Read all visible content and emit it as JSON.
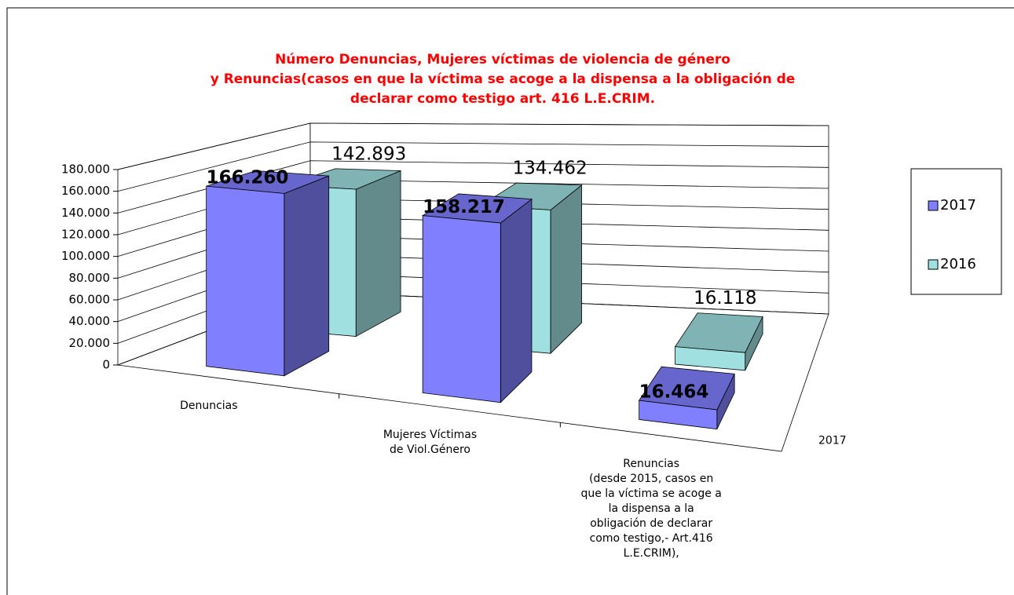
{
  "chart_data": {
    "type": "bar3d",
    "title": "Número Denuncias, Mujeres víctimas de violencia de género\ny Renuncias(casos en que la víctima se acoge a la dispensa a la obligación de\ndeclarar como testigo art. 416 L.E.CRIM.",
    "title_color": "#ff0000",
    "categories": [
      "Denuncias",
      "Mujeres Víctimas\nde Viol.Género",
      "Renuncias\n(desde 2015, casos en\nque la víctima se acoge a\nla dispensa  a la\nobligación de declarar\ncomo testigo,- Art.416\nL.E.CRIM),"
    ],
    "series": [
      {
        "name": "2017",
        "color": "#8080ff",
        "values": [
          166260,
          158217,
          16464
        ],
        "value_labels": [
          "166.260",
          "158.217",
          "16.464"
        ]
      },
      {
        "name": "2016",
        "color": "#a0e0e0",
        "values": [
          142893,
          134462,
          16118
        ],
        "value_labels": [
          "142.893",
          "134.462",
          "16.118"
        ]
      }
    ],
    "depth_labels": [
      "2017"
    ],
    "ylim": [
      0,
      180000
    ],
    "yticks": [
      0,
      {
        "value": 20000,
        "label": "20.000"
      },
      {
        "value": 40000,
        "label": "40.000"
      },
      {
        "value": 60000,
        "label": "60.000"
      },
      {
        "value": 80000,
        "label": "80.000"
      },
      {
        "value": 100000,
        "label": "100.000"
      },
      {
        "value": 120000,
        "label": "120.000"
      },
      {
        "value": 140000,
        "label": "140.000"
      },
      {
        "value": 160000,
        "label": "160.000"
      },
      {
        "value": 180000,
        "label": "180.000"
      }
    ],
    "grid": true,
    "legend": "right"
  }
}
